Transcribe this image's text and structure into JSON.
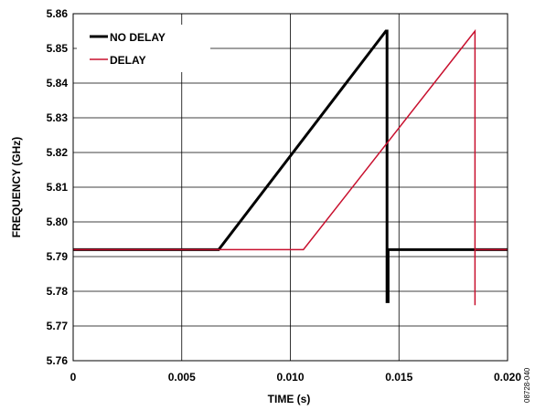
{
  "chart_data": {
    "type": "line",
    "xlabel": "TIME (s)",
    "ylabel": "FREQUENCY (GHz)",
    "xlim": [
      0,
      0.02
    ],
    "ylim": [
      5.76,
      5.86
    ],
    "xticks": [
      "0",
      "0.005",
      "0.010",
      "0.015",
      "0.020"
    ],
    "xtick_values": [
      0,
      0.005,
      0.01,
      0.015,
      0.02
    ],
    "yticks": [
      "5.76",
      "5.77",
      "5.78",
      "5.79",
      "5.80",
      "5.81",
      "5.82",
      "5.83",
      "5.84",
      "5.85",
      "5.86"
    ],
    "ytick_values": [
      5.76,
      5.77,
      5.78,
      5.79,
      5.8,
      5.81,
      5.82,
      5.83,
      5.84,
      5.85,
      5.86
    ],
    "grid": true,
    "legend_position": "top-left",
    "figure_id": "08728-040",
    "series": [
      {
        "name": "NO DELAY",
        "color": "#000000",
        "x": [
          0,
          0.0067,
          0.0144,
          0.01445,
          0.01445,
          0.0145,
          0.0145,
          0.02
        ],
        "y": [
          5.792,
          5.792,
          5.855,
          5.855,
          5.777,
          5.777,
          5.792,
          5.792
        ]
      },
      {
        "name": "DELAY",
        "color": "#c8102e",
        "x": [
          0,
          0.0106,
          0.0185,
          0.0185,
          0.0185,
          0.0185,
          0.02
        ],
        "y": [
          5.792,
          5.792,
          5.855,
          5.855,
          5.776,
          5.792,
          5.792
        ]
      }
    ]
  }
}
